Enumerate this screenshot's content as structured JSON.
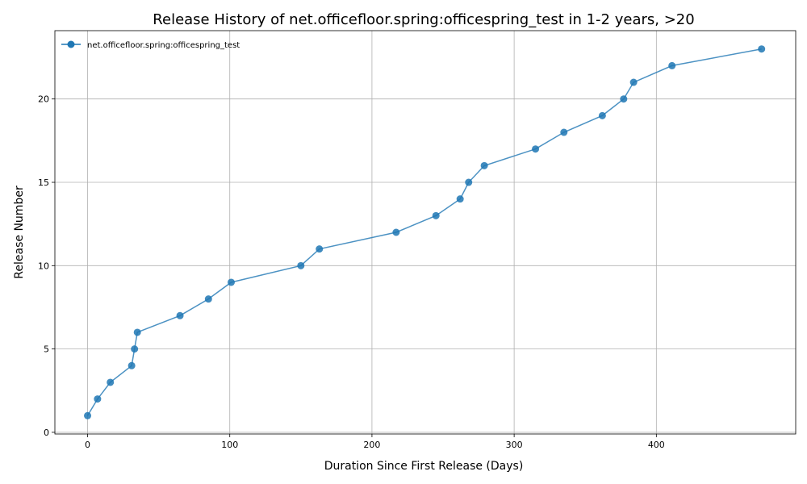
{
  "chart_data": {
    "type": "line",
    "title": "Release History of net.officefloor.spring:officespring_test in 1-2 years, >20",
    "xlabel": "Duration Since First Release (Days)",
    "ylabel": "Release Number",
    "xlim": [
      -23,
      498
    ],
    "ylim": [
      -0.1,
      24.1
    ],
    "xticks": [
      0,
      100,
      200,
      300,
      400
    ],
    "yticks": [
      0,
      5,
      10,
      15,
      20
    ],
    "grid": true,
    "legend_position": "top-left",
    "series": [
      {
        "name": "net.officefloor.spring:officespring_test",
        "color": "#1f77b4",
        "x": [
          0,
          7,
          16,
          31,
          33,
          35,
          65,
          85,
          101,
          150,
          163,
          217,
          245,
          262,
          268,
          279,
          315,
          335,
          362,
          377,
          384,
          411,
          474
        ],
        "y": [
          1,
          2,
          3,
          4,
          5,
          6,
          7,
          8,
          9,
          10,
          11,
          12,
          13,
          14,
          15,
          16,
          17,
          18,
          19,
          20,
          21,
          22,
          23
        ]
      }
    ]
  }
}
